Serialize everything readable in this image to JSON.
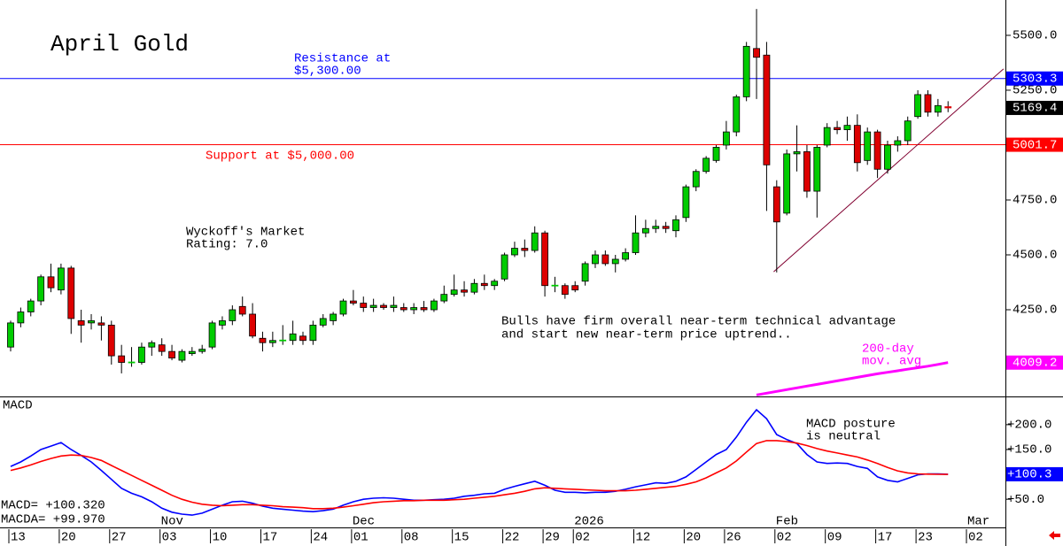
{
  "chart_data": [
    {
      "type": "candlestick",
      "title": "April Gold",
      "categories": [
        "13",
        null,
        null,
        null,
        null,
        "20",
        null,
        null,
        null,
        null,
        "27",
        null,
        null,
        null,
        null,
        "03",
        null,
        null,
        null,
        null,
        "10",
        null,
        null,
        null,
        null,
        "17",
        null,
        null,
        null,
        null,
        "24",
        null,
        null,
        null,
        "01",
        null,
        null,
        null,
        null,
        "08",
        null,
        null,
        null,
        null,
        "15",
        null,
        null,
        null,
        null,
        "22",
        null,
        null,
        null,
        "29",
        null,
        null,
        "02",
        null,
        null,
        null,
        null,
        null,
        "12",
        null,
        null,
        null,
        null,
        "20",
        null,
        null,
        null,
        "26",
        null,
        null,
        null,
        null,
        "02",
        null,
        null,
        null,
        null,
        "09",
        null,
        null,
        null,
        null,
        "17",
        null,
        null,
        null,
        "23",
        null,
        null,
        null,
        null,
        "02"
      ],
      "month_labels": [
        null,
        null,
        null,
        null,
        null,
        null,
        null,
        null,
        null,
        null,
        null,
        null,
        null,
        null,
        null,
        "Nov",
        null,
        null,
        null,
        null,
        null,
        null,
        null,
        null,
        null,
        null,
        null,
        null,
        null,
        null,
        null,
        null,
        null,
        null,
        "Dec",
        null,
        null,
        null,
        null,
        null,
        null,
        null,
        null,
        null,
        null,
        null,
        null,
        null,
        null,
        null,
        null,
        null,
        null,
        null,
        null,
        null,
        "2026",
        null,
        null,
        null,
        null,
        null,
        null,
        null,
        null,
        null,
        null,
        null,
        null,
        null,
        null,
        null,
        null,
        null,
        null,
        null,
        "Feb",
        null,
        null,
        null,
        null,
        null,
        null,
        null,
        null,
        null,
        null,
        null,
        null,
        null,
        null,
        null,
        null,
        null,
        null,
        "Mar"
      ],
      "open": [
        4080,
        4190,
        4240,
        4290,
        4400,
        4340,
        4440,
        4200,
        4190,
        4190,
        4180,
        4040,
        4010,
        4010,
        4080,
        4090,
        4060,
        4020,
        4050,
        4060,
        4080,
        4180,
        4200,
        4265,
        4230,
        4120,
        4100,
        4110,
        4110,
        4130,
        4110,
        4180,
        4200,
        4230,
        4290,
        4280,
        4260,
        4270,
        4260,
        4260,
        4250,
        4260,
        4250,
        4290,
        4320,
        4340,
        4330,
        4370,
        4360,
        4390,
        4500,
        4530,
        4520,
        4600,
        4360,
        4360,
        4360,
        4380,
        4460,
        4500,
        4460,
        4480,
        4510,
        4600,
        4620,
        4630,
        4610,
        4670,
        4810,
        4880,
        4930,
        5000,
        5060,
        5220,
        5440,
        5410,
        4810,
        4690,
        4960,
        4970,
        4790,
        5000,
        5080,
        5070,
        5090,
        4930,
        5060,
        4890,
        5000,
        5020,
        5130,
        5230,
        5150,
        5175,
        null,
        null
      ],
      "high": [
        4200,
        4260,
        4300,
        4410,
        4460,
        4460,
        4450,
        4250,
        4230,
        4220,
        4200,
        4090,
        4080,
        4100,
        4110,
        4120,
        4090,
        4070,
        4080,
        4090,
        4200,
        4220,
        4270,
        4310,
        4280,
        4150,
        4150,
        4180,
        4200,
        4150,
        4200,
        4230,
        4240,
        4300,
        4340,
        4310,
        4300,
        4280,
        4310,
        4280,
        4280,
        4290,
        4300,
        4360,
        4410,
        4380,
        4390,
        4410,
        4390,
        4510,
        4560,
        4570,
        4630,
        4610,
        4400,
        4370,
        4380,
        4470,
        4520,
        4520,
        4500,
        4530,
        4680,
        4660,
        4660,
        4650,
        4680,
        4820,
        4890,
        4950,
        5000,
        5110,
        5230,
        5470,
        5620,
        5470,
        4840,
        4980,
        5090,
        5000,
        5000,
        5100,
        5110,
        5130,
        5140,
        5080,
        5070,
        5020,
        5040,
        5130,
        5250,
        5250,
        5210,
        5200,
        null,
        null
      ],
      "low": [
        4060,
        4170,
        4220,
        4270,
        4330,
        4320,
        4140,
        4100,
        4160,
        4110,
        4000,
        3960,
        3990,
        4000,
        4040,
        4040,
        4020,
        4010,
        4040,
        4050,
        4070,
        4160,
        4180,
        4220,
        4120,
        4060,
        4080,
        4090,
        4090,
        4090,
        4090,
        4170,
        4180,
        4220,
        4270,
        4240,
        4240,
        4250,
        4240,
        4240,
        4230,
        4240,
        4240,
        4280,
        4310,
        4310,
        4320,
        4340,
        4340,
        4380,
        4490,
        4490,
        4510,
        4310,
        4330,
        4300,
        4330,
        4360,
        4440,
        4450,
        4420,
        4470,
        4500,
        4580,
        4600,
        4600,
        4580,
        4650,
        4790,
        4870,
        4920,
        4980,
        5040,
        5200,
        5210,
        4700,
        4420,
        4680,
        4880,
        4760,
        4670,
        4990,
        5050,
        5020,
        4880,
        4910,
        4850,
        4870,
        4970,
        5000,
        5120,
        5130,
        5130,
        5150,
        null,
        null
      ],
      "close": [
        4190,
        4240,
        4290,
        4400,
        4350,
        4440,
        4210,
        4180,
        4200,
        4180,
        4040,
        4010,
        4012,
        4080,
        4100,
        4060,
        4030,
        4060,
        4060,
        4070,
        4190,
        4200,
        4250,
        4230,
        4130,
        4100,
        4110,
        4112,
        4140,
        4110,
        4180,
        4210,
        4230,
        4290,
        4280,
        4260,
        4270,
        4260,
        4270,
        4250,
        4260,
        4250,
        4290,
        4320,
        4340,
        4330,
        4370,
        4360,
        4380,
        4500,
        4530,
        4520,
        4600,
        4360,
        4362,
        4320,
        4340,
        4460,
        4500,
        4460,
        4480,
        4510,
        4600,
        4620,
        4630,
        4620,
        4660,
        4810,
        4880,
        4940,
        4990,
        5060,
        5220,
        5450,
        5400,
        4910,
        4650,
        4960,
        4970,
        4790,
        4990,
        5080,
        5070,
        5090,
        4920,
        5060,
        4890,
        5000,
        5020,
        5110,
        5230,
        5150,
        5180,
        5169.4,
        null,
        null
      ],
      "up_color": "#00cc00",
      "down_color": "#dd0000",
      "ylim": [
        3855,
        5661
      ],
      "yticks": [
        {
          "value": 5500,
          "label": "5500.0"
        },
        {
          "value": 5250,
          "label": "5250.0"
        },
        {
          "value": 4750,
          "label": "4750.0"
        },
        {
          "value": 4500,
          "label": "4500.0"
        },
        {
          "value": 4250,
          "label": "4250.0"
        }
      ],
      "moving_average": {
        "color": "#ff00ff",
        "text": [
          "200-day",
          "mov. avg"
        ],
        "values": [
          null,
          null,
          null,
          null,
          null,
          null,
          null,
          null,
          null,
          null,
          null,
          null,
          null,
          null,
          null,
          null,
          null,
          null,
          null,
          null,
          null,
          null,
          null,
          null,
          null,
          null,
          null,
          null,
          null,
          null,
          null,
          null,
          null,
          null,
          null,
          null,
          null,
          null,
          null,
          null,
          null,
          null,
          null,
          null,
          null,
          null,
          null,
          null,
          null,
          null,
          null,
          null,
          null,
          null,
          null,
          null,
          null,
          null,
          null,
          null,
          null,
          null,
          null,
          null,
          null,
          null,
          null,
          null,
          null,
          null,
          null,
          null,
          null,
          null,
          3862,
          3870,
          3878,
          3886,
          3894,
          3902,
          3910,
          3918,
          3926,
          3934,
          3942,
          3950,
          3958,
          3965,
          3972,
          3979,
          3986,
          3993,
          4001,
          4009.2,
          null,
          null
        ]
      },
      "trendline": {
        "color": "#800030",
        "x": [
          75.7,
          98.5
        ],
        "y": [
          4423,
          5347
        ]
      },
      "price_lines": [
        {
          "value": 5303.3,
          "color": "#0000ff",
          "text": [
            "Resistance at",
            "$5,300.00"
          ]
        },
        {
          "value": 5001.7,
          "color": "#ff0000",
          "text": [
            "Support at $5,000.00"
          ]
        }
      ],
      "markers": [
        {
          "value": 5169.4,
          "color": "#000000"
        },
        {
          "value": 4009.2,
          "color": "#ff00ff"
        }
      ],
      "annotations": [
        [
          "Wyckoff's Market",
          "Rating: 7.0"
        ],
        [
          "Bulls have firm overall near-term technical advantage",
          "and start new near-term price uptrend.."
        ]
      ]
    },
    {
      "type": "line",
      "title": "MACD",
      "series": [
        {
          "color": "#0000ff",
          "values": [
            116,
            125,
            137,
            150,
            157,
            164,
            150,
            138,
            125,
            108,
            90,
            72,
            62,
            55,
            45,
            32,
            24,
            20,
            18,
            22,
            30,
            38,
            45,
            46,
            42,
            36,
            32,
            30,
            28,
            26,
            25,
            27,
            30,
            38,
            45,
            50,
            52,
            53,
            52,
            50,
            48,
            48,
            49,
            50,
            52,
            56,
            58,
            61,
            62,
            70,
            76,
            81,
            86,
            78,
            68,
            64,
            64,
            63,
            64,
            64,
            66,
            70,
            75,
            79,
            83,
            82,
            86,
            95,
            110,
            125,
            140,
            150,
            175,
            205,
            230,
            212,
            180,
            170,
            162,
            140,
            125,
            122,
            123,
            122,
            116,
            112,
            95,
            88,
            85,
            92,
            99,
            101,
            101,
            100.32,
            null,
            null
          ]
        },
        {
          "color": "#ff0000",
          "values": [
            108,
            113,
            119,
            126,
            132,
            137,
            139,
            138,
            134,
            128,
            118,
            108,
            98,
            88,
            78,
            68,
            58,
            50,
            44,
            40,
            38,
            37,
            38,
            39,
            39,
            38,
            37,
            35,
            34,
            33,
            31,
            31,
            32,
            34,
            37,
            40,
            43,
            45,
            46,
            47,
            47,
            48,
            48,
            48,
            49,
            50,
            52,
            54,
            56,
            59,
            62,
            66,
            71,
            73,
            72,
            71,
            70,
            69,
            68,
            67,
            67,
            67,
            68,
            70,
            72,
            74,
            76,
            80,
            85,
            93,
            103,
            113,
            127,
            145,
            162,
            168,
            168,
            166,
            163,
            158,
            152,
            147,
            143,
            139,
            135,
            129,
            122,
            114,
            107,
            103,
            101,
            100.5,
            100.2,
            99.97,
            null,
            null
          ]
        }
      ],
      "ylim": [
        4,
        255
      ],
      "yticks": [
        {
          "value": 200,
          "label": "+200.0"
        },
        {
          "value": 150,
          "label": "+150.0"
        },
        {
          "value": 50,
          "label": "+50.0"
        }
      ],
      "marker": {
        "value": 100.3,
        "label": "+100.3",
        "color": "#0000ff"
      },
      "readout": [
        "MACD= +100.320",
        "MACDA= +99.970"
      ],
      "annotation": [
        "MACD posture",
        "is neutral"
      ]
    }
  ]
}
